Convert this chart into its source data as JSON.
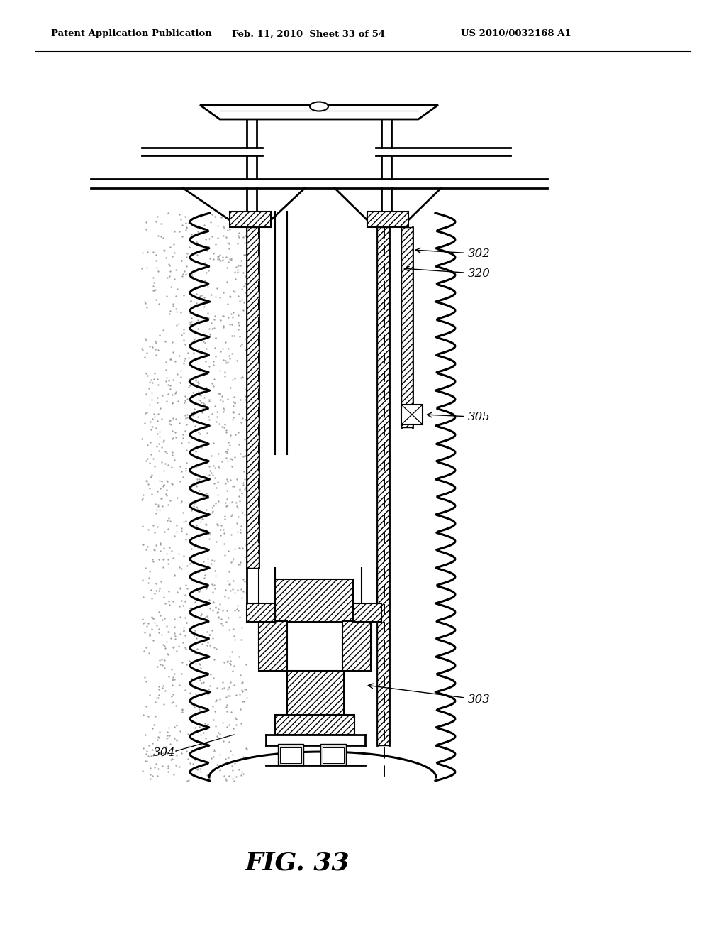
{
  "bg_color": "#ffffff",
  "header_left": "Patent Application Publication",
  "header_mid": "Feb. 11, 2010  Sheet 33 of 54",
  "header_right": "US 2010/0032168 A1",
  "fig_label": "FIG. 33",
  "lw_base": 1.5,
  "lw_thick": 2.0
}
